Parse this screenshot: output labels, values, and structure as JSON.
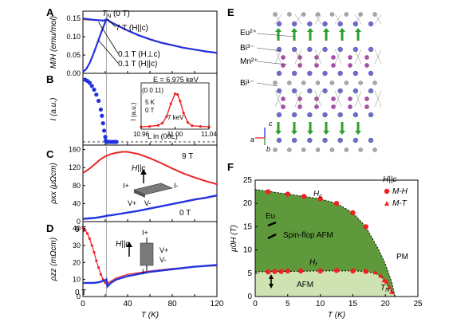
{
  "panel_labels": {
    "A": "A",
    "B": "B",
    "C": "C",
    "D": "D",
    "E": "E",
    "F": "F"
  },
  "colors": {
    "red": "#ee2222",
    "blue": "#2233dd",
    "dark_green": "#5e9a3c",
    "light_green": "#cfe3b2",
    "gray": "#999999"
  },
  "texts": {
    "tn_label": "T",
    "tn_sub": "N",
    "tn_rest": " (0 T)",
    "a_7T": "7 T (H||c)",
    "a_01_perp": "0.1 T (H⊥c)",
    "a_01_par": "0.1 T (H||c)",
    "b_inset_E": "E = 6.975 keV",
    "b_inset_refl": "(0 0 11)",
    "b_inset_T": "5 K",
    "b_inset_B": "0 T",
    "b_inset_7keV": "7 keV",
    "b_inset_xlabel": "L in (00L)",
    "b_inset_ylabel": "I (a.u.)",
    "c_9T": "9 T",
    "c_0T": "0 T",
    "c_H": "H||c",
    "c_Iplus": "I+",
    "c_Iminus": "I-",
    "c_Vplus": "V+",
    "c_Vminus": "V-",
    "d_9T": "9 T",
    "d_0T": "0 T",
    "d_H": "H||c",
    "d_Iplus": "I+",
    "d_Iminus": "I-",
    "d_Vplus": "V+",
    "d_Vminus": "V-",
    "e_eu": "Eu²⁺",
    "e_bi3": "Bi³⁻",
    "e_mn": "Mn²⁺",
    "e_bi1": "Bi¹⁻",
    "e_axis_c": "c",
    "e_axis_a": "a",
    "e_axis_b": "b",
    "f_Hc": "H",
    "f_Hc_sub": "c",
    "f_Hf": "H",
    "f_Hf_sub": "f",
    "f_eu": "Eu",
    "f_spinflop": "Spin-flop AFM",
    "f_afm": "AFM",
    "f_pm": "PM",
    "f_tn": "T",
    "f_tn_sub": "N",
    "f_legend_title": "H||c",
    "f_legend_mh": "M-H",
    "f_legend_mt": "M-T"
  },
  "chart_data": [
    {
      "type": "line",
      "panel": "A",
      "ylabel": "M/H (emu/mol)",
      "ylim": [
        0,
        0.17
      ],
      "yticks": [
        0.0,
        0.05,
        0.1,
        0.15
      ],
      "xlim": [
        0,
        120
      ],
      "series": [
        {
          "name": "7 T (H||c)",
          "color": "red",
          "x": [
            0,
            5,
            10,
            15,
            19,
            21,
            25,
            30,
            40,
            50,
            60,
            70,
            80,
            90,
            100,
            110,
            120
          ],
          "y": [
            0.148,
            0.147,
            0.146,
            0.145,
            0.144,
            0.148,
            0.14,
            0.132,
            0.117,
            0.104,
            0.093,
            0.084,
            0.077,
            0.07,
            0.065,
            0.06,
            0.056
          ]
        },
        {
          "name": "0.1 T (H⊥c)",
          "color": "blue",
          "x": [
            0,
            5,
            10,
            15,
            19,
            21,
            25,
            30,
            40,
            50,
            60,
            70,
            80,
            90,
            100,
            110,
            120
          ],
          "y": [
            0.15,
            0.148,
            0.146,
            0.145,
            0.144,
            0.148,
            0.14,
            0.132,
            0.117,
            0.104,
            0.093,
            0.084,
            0.077,
            0.07,
            0.065,
            0.06,
            0.056
          ]
        },
        {
          "name": "0.1 T (H||c)",
          "color": "blue",
          "x": [
            0,
            3,
            6,
            9,
            12,
            15,
            18,
            20,
            21
          ],
          "y": [
            0.004,
            0.012,
            0.028,
            0.05,
            0.075,
            0.1,
            0.125,
            0.14,
            0.148
          ]
        }
      ]
    },
    {
      "type": "scatter",
      "panel": "B",
      "ylabel": "I (a.u.)",
      "xlim": [
        0,
        120
      ],
      "series": [
        {
          "name": "",
          "color": "blue",
          "x": [
            2,
            4,
            6,
            8,
            10,
            12,
            14,
            16,
            17,
            18,
            19,
            20,
            20.5,
            21,
            22,
            24,
            26,
            28,
            30
          ],
          "y": [
            1.0,
            0.98,
            0.95,
            0.9,
            0.84,
            0.76,
            0.66,
            0.52,
            0.42,
            0.3,
            0.18,
            0.08,
            0.02,
            0.0,
            0.0,
            0.0,
            0.0,
            0.0,
            0.0
          ]
        }
      ],
      "inset": {
        "xlabel": "L in (00L)",
        "ylabel": "I (a.u.)",
        "xlim": [
          10.96,
          11.04
        ],
        "xticks": [
          10.96,
          11.0,
          11.04
        ],
        "x": [
          10.96,
          10.97,
          10.98,
          10.985,
          10.99,
          10.995,
          11.0,
          11.003,
          11.006,
          11.01,
          11.015,
          11.02,
          11.03,
          11.04
        ],
        "y": [
          0.02,
          0.03,
          0.06,
          0.12,
          0.3,
          0.65,
          0.92,
          0.9,
          0.72,
          0.4,
          0.14,
          0.05,
          0.03,
          0.02
        ]
      }
    },
    {
      "type": "line",
      "panel": "C",
      "ylabel": "ρxx (μΩcm)",
      "ylim": [
        0,
        170
      ],
      "yticks": [
        0,
        40,
        80,
        120,
        160
      ],
      "xlim": [
        0,
        120
      ],
      "series": [
        {
          "name": "9 T",
          "color": "red",
          "x": [
            0,
            5,
            10,
            15,
            20,
            25,
            30,
            35,
            40,
            50,
            60,
            70,
            80,
            90,
            100,
            110,
            120
          ],
          "y": [
            108,
            116,
            126,
            137,
            145,
            150,
            153,
            155,
            155,
            150,
            141,
            130,
            118,
            107,
            98,
            90,
            83
          ]
        },
        {
          "name": "0 T",
          "color": "blue",
          "x": [
            0,
            5,
            10,
            15,
            20,
            21,
            25,
            30,
            40,
            50,
            60,
            70,
            80,
            90,
            100,
            110,
            120
          ],
          "y": [
            6,
            7,
            8,
            10,
            12,
            13,
            14,
            16,
            20,
            24,
            29,
            34,
            39,
            44,
            49,
            53,
            58
          ]
        }
      ]
    },
    {
      "type": "line",
      "panel": "D",
      "ylabel": "ρzz (mΩcm)",
      "ylim": [
        0,
        44
      ],
      "yticks": [
        0,
        10,
        20,
        30,
        40
      ],
      "xlim": [
        0,
        120
      ],
      "xticks": [
        0,
        40,
        80,
        120
      ],
      "xlabel": "T (K)",
      "series": [
        {
          "name": "9 T",
          "color": "red",
          "x": [
            0,
            2,
            4,
            6,
            8,
            10,
            12,
            14,
            16,
            18,
            20,
            22,
            25,
            30,
            40,
            60,
            80,
            100,
            120
          ],
          "y": [
            40,
            39,
            37,
            34,
            30,
            26,
            21,
            17,
            13,
            10,
            8,
            8,
            9,
            11,
            13,
            15,
            16.5,
            17.5,
            18
          ]
        },
        {
          "name": "0 T",
          "color": "blue",
          "x": [
            0,
            5,
            10,
            15,
            20,
            21,
            22,
            25,
            30,
            40,
            60,
            80,
            100,
            120
          ],
          "y": [
            8,
            8,
            8,
            8.5,
            9.5,
            10,
            6,
            8,
            10,
            12,
            14.5,
            16,
            17.5,
            18.5
          ]
        }
      ]
    },
    {
      "type": "scatter",
      "panel": "F",
      "xlabel": "T (K)",
      "ylabel": "μ0H (T)",
      "xlim": [
        0,
        25
      ],
      "ylim": [
        0,
        25
      ],
      "xticks": [
        0,
        5,
        10,
        15,
        20,
        25
      ],
      "yticks": [
        0,
        5,
        10,
        15,
        20,
        25
      ],
      "series": [
        {
          "name": "M-H",
          "color": "red",
          "marker": "circle",
          "x": [
            2,
            5,
            7.5,
            10,
            12.5,
            15,
            17,
            2,
            3,
            4,
            5,
            7,
            10,
            12.5,
            15,
            17
          ],
          "y": [
            22.5,
            22,
            21.5,
            21,
            20,
            18,
            15,
            5.3,
            5.4,
            5.4,
            5.5,
            5.5,
            5.5,
            5.6,
            5.5,
            5.4
          ]
        },
        {
          "name": "M-T",
          "color": "red",
          "marker": "triangle",
          "x": [
            18.5,
            19.3,
            19.8,
            20.2,
            20.6,
            21
          ],
          "y": [
            5.2,
            4.5,
            3.5,
            3.2,
            2,
            1
          ]
        }
      ],
      "boundaries": {
        "hc": {
          "x": [
            0,
            2,
            5,
            7.5,
            10,
            12.5,
            15,
            17,
            19,
            20,
            21,
            21.5
          ],
          "y": [
            23,
            22.6,
            22,
            21.5,
            21,
            20,
            18,
            15,
            10,
            7,
            3,
            0
          ]
        },
        "hf": {
          "x": [
            0,
            5,
            10,
            15,
            17,
            18.5,
            19.5,
            20.5,
            21.5
          ],
          "y": [
            5.3,
            5.4,
            5.5,
            5.5,
            5.4,
            5,
            4,
            2,
            0
          ]
        }
      }
    }
  ]
}
